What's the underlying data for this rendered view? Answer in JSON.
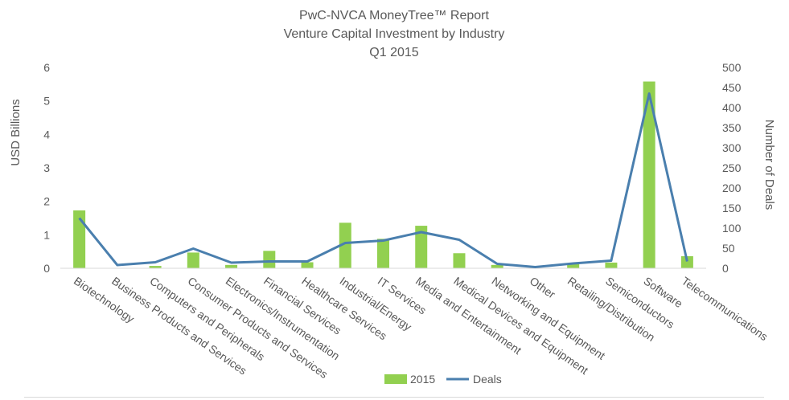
{
  "chart_data": {
    "type": "bar",
    "title": [
      "PwC-NVCA MoneyTree™ Report",
      "Venture Capital Investment by Industry",
      "Q1 2015"
    ],
    "ylabel": "USD Billions",
    "y2label": "Number of Deals",
    "ylim": [
      0,
      6
    ],
    "y2lim": [
      0,
      500
    ],
    "yticks": [
      "0",
      "1",
      "2",
      "3",
      "4",
      "5",
      "6"
    ],
    "y2ticks": [
      "0",
      "50",
      "100",
      "150",
      "200",
      "250",
      "300",
      "350",
      "400",
      "450",
      "500"
    ],
    "categories": [
      "Biotechnology",
      "Business Products and Services",
      "Computers and Peripherals",
      "Consumer Products and Services",
      "Electronics/Instrumentation",
      "Financial Services",
      "Healthcare Services",
      "Industrial/Energy",
      "IT Services",
      "Media and Entertainment",
      "Medical Devices and Equipment",
      "Networking and Equipment",
      "Other",
      "Retailing/Distribution",
      "Semiconductors",
      "Software",
      "Telecommunications"
    ],
    "series": [
      {
        "name": "2015",
        "kind": "bar",
        "axis": "left",
        "color": "#92d050",
        "values": [
          1.73,
          0.01,
          0.07,
          0.47,
          0.1,
          0.52,
          0.18,
          1.36,
          0.88,
          1.27,
          0.45,
          0.1,
          0.0,
          0.13,
          0.17,
          5.58,
          0.36
        ]
      },
      {
        "name": "Deals",
        "kind": "line",
        "axis": "right",
        "color": "#4a7fae",
        "values": [
          125,
          8,
          15,
          49,
          14,
          17,
          17,
          63,
          69,
          90,
          71,
          11,
          3,
          12,
          19,
          435,
          17
        ]
      }
    ],
    "legend_position": "bottom",
    "grid": false
  }
}
